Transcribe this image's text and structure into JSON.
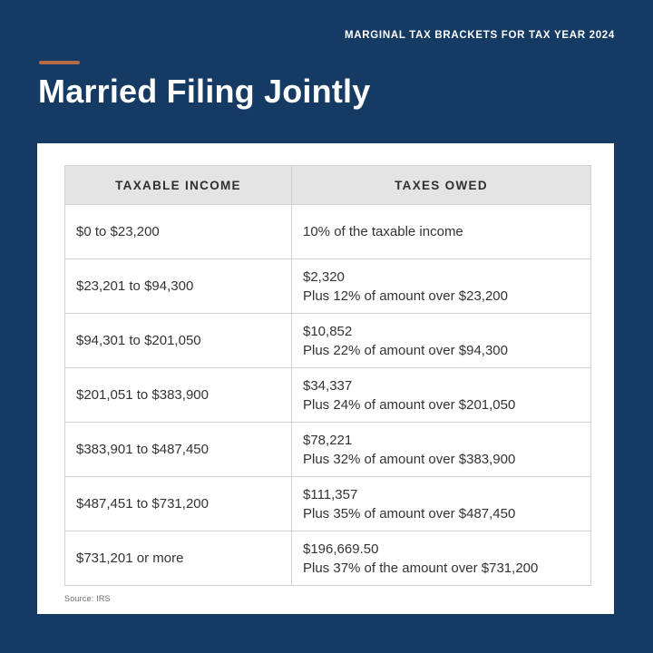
{
  "header": {
    "eyebrow": "MARGINAL TAX BRACKETS FOR TAX YEAR 2024",
    "title": "Married Filing Jointly"
  },
  "colors": {
    "background": "#153a63",
    "accent": "#b56b45",
    "card": "#ffffff",
    "table_header_bg": "#e4e4e4",
    "table_border": "#d2d2d2",
    "text_dark": "#333333",
    "text_light": "#ffffff"
  },
  "table": {
    "columns": [
      "TAXABLE INCOME",
      "TAXES OWED"
    ],
    "rows": [
      {
        "income": "$0 to $23,200",
        "owed_lines": [
          "10% of the taxable income"
        ]
      },
      {
        "income": "$23,201 to $94,300",
        "owed_lines": [
          "$2,320",
          "Plus 12% of amount over $23,200"
        ]
      },
      {
        "income": "$94,301 to $201,050",
        "owed_lines": [
          "$10,852",
          "Plus 22% of amount over $94,300"
        ]
      },
      {
        "income": "$201,051 to $383,900",
        "owed_lines": [
          "$34,337",
          "Plus 24% of amount over $201,050"
        ]
      },
      {
        "income": "$383,901 to $487,450",
        "owed_lines": [
          "$78,221",
          "Plus 32% of amount over $383,900"
        ]
      },
      {
        "income": "$487,451 to $731,200",
        "owed_lines": [
          "$111,357",
          "Plus 35% of amount over $487,450"
        ]
      },
      {
        "income": "$731,201 or more",
        "owed_lines": [
          "$196,669.50",
          "Plus 37% of the amount over $731,200"
        ]
      }
    ]
  },
  "footer": {
    "source": "Source: IRS"
  },
  "chart_data": {
    "type": "table",
    "title": "Married Filing Jointly",
    "subtitle": "Marginal Tax Brackets for Tax Year 2024",
    "columns": [
      "Taxable Income",
      "Taxes Owed"
    ],
    "brackets": [
      {
        "income_min": 0,
        "income_max": 23200,
        "rate_pct": 10,
        "base_tax": 0,
        "amount_over": 0,
        "note": "10% of the taxable income"
      },
      {
        "income_min": 23201,
        "income_max": 94300,
        "rate_pct": 12,
        "base_tax": 2320,
        "amount_over": 23200
      },
      {
        "income_min": 94301,
        "income_max": 201050,
        "rate_pct": 22,
        "base_tax": 10852,
        "amount_over": 94300
      },
      {
        "income_min": 201051,
        "income_max": 383900,
        "rate_pct": 24,
        "base_tax": 34337,
        "amount_over": 201050
      },
      {
        "income_min": 383901,
        "income_max": 487450,
        "rate_pct": 32,
        "base_tax": 78221,
        "amount_over": 383900
      },
      {
        "income_min": 487451,
        "income_max": 731200,
        "rate_pct": 35,
        "base_tax": 111357,
        "amount_over": 487450
      },
      {
        "income_min": 731201,
        "income_max": null,
        "rate_pct": 37,
        "base_tax": 196669.5,
        "amount_over": 731200
      }
    ],
    "source": "IRS"
  }
}
